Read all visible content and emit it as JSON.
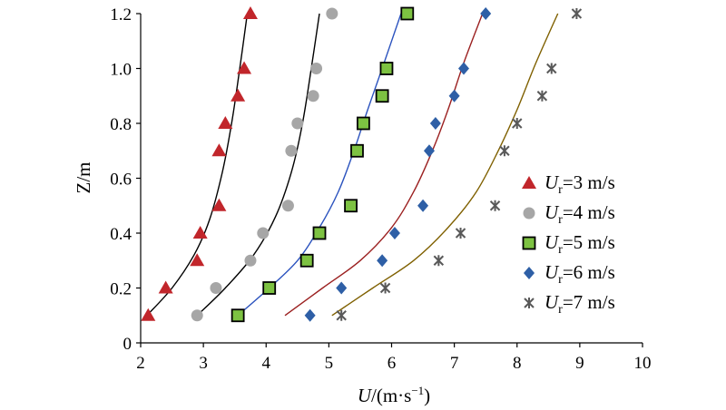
{
  "chart_data": {
    "type": "scatter",
    "title": "",
    "xlabel": {
      "main": "U",
      "unit_pre": "/(m·s",
      "unit_sup": "−1",
      "unit_post": ")"
    },
    "ylabel": "Z/m",
    "xlim": [
      2,
      10
    ],
    "ylim": [
      0,
      1.2
    ],
    "x_ticks": [
      "2",
      "3",
      "4",
      "5",
      "6",
      "7",
      "8",
      "9",
      "10"
    ],
    "y_ticks": [
      "0",
      "0.2",
      "0.4",
      "0.6",
      "0.8",
      "1.0",
      "1.2"
    ],
    "grid": false,
    "legend_position": "right",
    "series": [
      {
        "legend_main": "U",
        "legend_sub": "r",
        "legend_rest": "=3 m/s",
        "marker": "triangle",
        "color": "#c1262b",
        "line_color": "#000000",
        "points": [
          [
            2.12,
            0.1
          ],
          [
            2.4,
            0.2
          ],
          [
            2.9,
            0.3
          ],
          [
            2.95,
            0.4
          ],
          [
            3.25,
            0.5
          ],
          [
            3.25,
            0.7
          ],
          [
            3.35,
            0.8
          ],
          [
            3.55,
            0.9
          ],
          [
            3.65,
            1.0
          ],
          [
            3.75,
            1.2
          ]
        ],
        "fit": [
          [
            2.1,
            0.1
          ],
          [
            2.5,
            0.2
          ],
          [
            2.85,
            0.32
          ],
          [
            3.1,
            0.45
          ],
          [
            3.3,
            0.62
          ],
          [
            3.45,
            0.8
          ],
          [
            3.58,
            1.0
          ],
          [
            3.7,
            1.2
          ]
        ]
      },
      {
        "legend_main": "U",
        "legend_sub": "r",
        "legend_rest": "=4 m/s",
        "marker": "circle",
        "color": "#a6a6a6",
        "line_color": "#000000",
        "points": [
          [
            2.9,
            0.1
          ],
          [
            3.2,
            0.2
          ],
          [
            3.75,
            0.3
          ],
          [
            3.95,
            0.4
          ],
          [
            4.35,
            0.5
          ],
          [
            4.4,
            0.7
          ],
          [
            4.5,
            0.8
          ],
          [
            4.75,
            0.9
          ],
          [
            4.8,
            1.0
          ],
          [
            5.05,
            1.2
          ]
        ],
        "fit": [
          [
            2.9,
            0.1
          ],
          [
            3.35,
            0.2
          ],
          [
            3.8,
            0.32
          ],
          [
            4.15,
            0.46
          ],
          [
            4.4,
            0.62
          ],
          [
            4.58,
            0.8
          ],
          [
            4.72,
            1.0
          ],
          [
            4.85,
            1.2
          ]
        ]
      },
      {
        "legend_main": "U",
        "legend_sub": "r",
        "legend_rest": "=5 m/s",
        "marker": "square",
        "color": "#7dc242",
        "line_color": "#2a52be",
        "points": [
          [
            3.55,
            0.1
          ],
          [
            4.05,
            0.2
          ],
          [
            4.65,
            0.3
          ],
          [
            4.85,
            0.4
          ],
          [
            5.35,
            0.5
          ],
          [
            5.45,
            0.7
          ],
          [
            5.55,
            0.8
          ],
          [
            5.85,
            0.9
          ],
          [
            5.92,
            1.0
          ],
          [
            6.25,
            1.2
          ]
        ],
        "fit": [
          [
            3.55,
            0.1
          ],
          [
            4.05,
            0.2
          ],
          [
            4.5,
            0.3
          ],
          [
            4.85,
            0.42
          ],
          [
            5.15,
            0.55
          ],
          [
            5.4,
            0.7
          ],
          [
            5.62,
            0.85
          ],
          [
            5.85,
            1.0
          ],
          [
            6.15,
            1.2
          ]
        ]
      },
      {
        "legend_main": "U",
        "legend_sub": "r",
        "legend_rest": "=6 m/s",
        "marker": "diamond",
        "color": "#2e5fa6",
        "line_color": "#9b2020",
        "points": [
          [
            4.7,
            0.1
          ],
          [
            5.2,
            0.2
          ],
          [
            5.85,
            0.3
          ],
          [
            6.05,
            0.4
          ],
          [
            6.5,
            0.5
          ],
          [
            6.6,
            0.7
          ],
          [
            6.7,
            0.8
          ],
          [
            7.0,
            0.9
          ],
          [
            7.15,
            1.0
          ],
          [
            7.5,
            1.2
          ]
        ],
        "fit": [
          [
            4.3,
            0.1
          ],
          [
            4.9,
            0.2
          ],
          [
            5.5,
            0.3
          ],
          [
            6.0,
            0.42
          ],
          [
            6.35,
            0.55
          ],
          [
            6.65,
            0.7
          ],
          [
            6.9,
            0.85
          ],
          [
            7.15,
            1.02
          ],
          [
            7.45,
            1.2
          ]
        ]
      },
      {
        "legend_main": "U",
        "legend_sub": "r",
        "legend_rest": "=7 m/s",
        "marker": "cross",
        "color": "#595959",
        "line_color": "#7f6000",
        "points": [
          [
            5.2,
            0.1
          ],
          [
            5.9,
            0.2
          ],
          [
            6.75,
            0.3
          ],
          [
            7.1,
            0.4
          ],
          [
            7.65,
            0.5
          ],
          [
            7.8,
            0.7
          ],
          [
            8.0,
            0.8
          ],
          [
            8.4,
            0.9
          ],
          [
            8.55,
            1.0
          ],
          [
            8.95,
            1.2
          ]
        ],
        "fit": [
          [
            5.05,
            0.1
          ],
          [
            5.7,
            0.2
          ],
          [
            6.35,
            0.3
          ],
          [
            6.9,
            0.42
          ],
          [
            7.35,
            0.55
          ],
          [
            7.7,
            0.7
          ],
          [
            8.0,
            0.85
          ],
          [
            8.3,
            1.02
          ],
          [
            8.65,
            1.2
          ]
        ]
      }
    ]
  }
}
